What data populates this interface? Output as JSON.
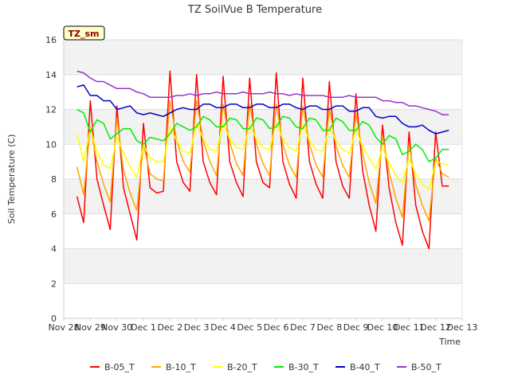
{
  "chart_data": {
    "type": "line",
    "title": "TZ SoilVue B Temperature",
    "xlabel": "Time",
    "ylabel": "Soil Temperature (C)",
    "annotation": "TZ_sm",
    "xlim": [
      "2021-11-28",
      "2021-12-13"
    ],
    "ylim": [
      0,
      16
    ],
    "x_ticks": [
      "Nov 28",
      "Nov 29",
      "Nov 30",
      "Dec 1",
      "Dec 2",
      "Dec 3",
      "Dec 4",
      "Dec 5",
      "Dec 6",
      "Dec 7",
      "Dec 8",
      "Dec 9",
      "Dec 10",
      "Dec 11",
      "Dec 12",
      "Dec 13"
    ],
    "y_ticks": [
      0,
      2,
      4,
      6,
      8,
      10,
      12,
      14,
      16
    ],
    "grid": true,
    "background_bands": true,
    "legend_position": "bottom",
    "x": [
      "2021-11-28T12:00",
      "2021-11-28T18:00",
      "2021-11-29T00:00",
      "2021-11-29T06:00",
      "2021-11-29T12:00",
      "2021-11-29T18:00",
      "2021-11-30T00:00",
      "2021-11-30T06:00",
      "2021-11-30T12:00",
      "2021-11-30T18:00",
      "2021-12-01T00:00",
      "2021-12-01T06:00",
      "2021-12-01T12:00",
      "2021-12-01T18:00",
      "2021-12-02T00:00",
      "2021-12-02T06:00",
      "2021-12-02T12:00",
      "2021-12-02T18:00",
      "2021-12-03T00:00",
      "2021-12-03T06:00",
      "2021-12-03T12:00",
      "2021-12-03T18:00",
      "2021-12-04T00:00",
      "2021-12-04T06:00",
      "2021-12-04T12:00",
      "2021-12-04T18:00",
      "2021-12-05T00:00",
      "2021-12-05T06:00",
      "2021-12-05T12:00",
      "2021-12-05T18:00",
      "2021-12-06T00:00",
      "2021-12-06T06:00",
      "2021-12-06T12:00",
      "2021-12-06T18:00",
      "2021-12-07T00:00",
      "2021-12-07T06:00",
      "2021-12-07T12:00",
      "2021-12-07T18:00",
      "2021-12-08T00:00",
      "2021-12-08T06:00",
      "2021-12-08T12:00",
      "2021-12-08T18:00",
      "2021-12-09T00:00",
      "2021-12-09T06:00",
      "2021-12-09T12:00",
      "2021-12-09T18:00",
      "2021-12-10T00:00",
      "2021-12-10T06:00",
      "2021-12-10T12:00",
      "2021-12-10T18:00",
      "2021-12-11T00:00",
      "2021-12-11T06:00",
      "2021-12-11T12:00",
      "2021-12-11T18:00",
      "2021-12-12T00:00",
      "2021-12-12T06:00",
      "2021-12-12T12:00"
    ],
    "series": [
      {
        "name": "B-05_T",
        "color": "#ff0000",
        "values": [
          7.0,
          5.5,
          12.5,
          8.0,
          6.5,
          5.1,
          12.2,
          7.5,
          6.0,
          4.5,
          11.2,
          7.5,
          7.2,
          7.3,
          14.2,
          9.0,
          7.8,
          7.3,
          14.0,
          9.0,
          7.8,
          7.1,
          13.9,
          9.0,
          7.8,
          7.0,
          13.8,
          9.0,
          7.8,
          7.5,
          14.1,
          9.0,
          7.7,
          6.9,
          13.8,
          9.0,
          7.7,
          6.9,
          13.6,
          9.0,
          7.6,
          6.9,
          12.9,
          8.5,
          6.5,
          5.0,
          11.1,
          7.5,
          5.5,
          4.2,
          10.7,
          6.5,
          5.0,
          4.0,
          10.7,
          7.6,
          7.6
        ]
      },
      {
        "name": "B-10_T",
        "color": "#ffa500",
        "values": [
          8.7,
          7.1,
          11.0,
          9.0,
          7.7,
          6.7,
          11.5,
          8.5,
          7.2,
          6.2,
          10.0,
          8.3,
          8.0,
          7.9,
          12.5,
          10.2,
          9.0,
          8.4,
          12.5,
          10.2,
          9.0,
          8.2,
          12.3,
          10.1,
          8.9,
          8.2,
          12.3,
          10.0,
          8.9,
          8.2,
          12.3,
          10.0,
          8.8,
          8.1,
          12.2,
          10.0,
          8.8,
          8.1,
          12.1,
          9.9,
          8.8,
          8.1,
          11.8,
          9.5,
          7.8,
          6.6,
          10.5,
          8.4,
          6.9,
          5.8,
          10.0,
          7.7,
          6.5,
          5.6,
          9.2,
          8.3,
          8.1
        ]
      },
      {
        "name": "B-20_T",
        "color": "#ffff00",
        "values": [
          10.6,
          9.0,
          10.9,
          9.6,
          8.8,
          8.6,
          10.4,
          9.5,
          8.7,
          8.1,
          10.0,
          9.2,
          9.0,
          9.0,
          11.0,
          10.2,
          9.6,
          9.5,
          11.2,
          10.3,
          9.7,
          9.6,
          11.2,
          10.3,
          9.8,
          9.7,
          11.1,
          10.3,
          9.8,
          9.7,
          11.2,
          10.3,
          9.8,
          9.6,
          11.1,
          10.2,
          9.7,
          9.6,
          11.0,
          10.2,
          9.7,
          9.5,
          10.8,
          9.9,
          9.2,
          8.6,
          9.8,
          8.9,
          8.2,
          7.8,
          9.2,
          8.3,
          7.7,
          7.4,
          9.0,
          8.9,
          8.8
        ]
      },
      {
        "name": "B-30_T",
        "color": "#00ee00",
        "values": [
          12.0,
          11.8,
          10.7,
          11.4,
          11.2,
          10.3,
          10.6,
          10.9,
          10.9,
          10.2,
          10.0,
          10.4,
          10.3,
          10.2,
          10.6,
          11.2,
          11.0,
          10.8,
          11.0,
          11.6,
          11.4,
          11.0,
          11.0,
          11.5,
          11.4,
          10.9,
          10.9,
          11.5,
          11.4,
          10.9,
          11.0,
          11.6,
          11.5,
          11.0,
          10.9,
          11.5,
          11.4,
          10.8,
          10.8,
          11.5,
          11.3,
          10.8,
          10.8,
          11.3,
          11.1,
          10.4,
          10.0,
          10.5,
          10.3,
          9.4,
          9.6,
          10.0,
          9.7,
          9.0,
          9.2,
          9.7,
          9.7
        ]
      },
      {
        "name": "B-40_T",
        "color": "#0000cc",
        "values": [
          13.3,
          13.4,
          12.8,
          12.8,
          12.5,
          12.5,
          12.0,
          12.1,
          12.2,
          11.8,
          11.7,
          11.8,
          11.7,
          11.6,
          11.8,
          12.0,
          12.1,
          12.0,
          12.0,
          12.3,
          12.3,
          12.1,
          12.1,
          12.3,
          12.3,
          12.1,
          12.1,
          12.3,
          12.3,
          12.1,
          12.1,
          12.3,
          12.3,
          12.1,
          12.0,
          12.2,
          12.2,
          12.0,
          12.0,
          12.2,
          12.2,
          11.9,
          11.9,
          12.1,
          12.1,
          11.6,
          11.5,
          11.6,
          11.6,
          11.2,
          11.0,
          11.0,
          11.1,
          10.8,
          10.6,
          10.7,
          10.8
        ]
      },
      {
        "name": "B-50_T",
        "color": "#9933cc",
        "values": [
          14.2,
          14.1,
          13.8,
          13.6,
          13.6,
          13.4,
          13.2,
          13.2,
          13.2,
          13.0,
          12.9,
          12.7,
          12.7,
          12.7,
          12.7,
          12.8,
          12.8,
          12.9,
          12.8,
          12.9,
          12.9,
          13.0,
          12.9,
          12.9,
          12.9,
          13.0,
          12.9,
          12.9,
          12.9,
          13.0,
          12.9,
          12.9,
          12.8,
          12.9,
          12.8,
          12.8,
          12.8,
          12.8,
          12.7,
          12.7,
          12.7,
          12.8,
          12.7,
          12.7,
          12.7,
          12.7,
          12.5,
          12.5,
          12.4,
          12.4,
          12.2,
          12.2,
          12.1,
          12.0,
          11.9,
          11.7,
          11.7
        ]
      }
    ]
  }
}
